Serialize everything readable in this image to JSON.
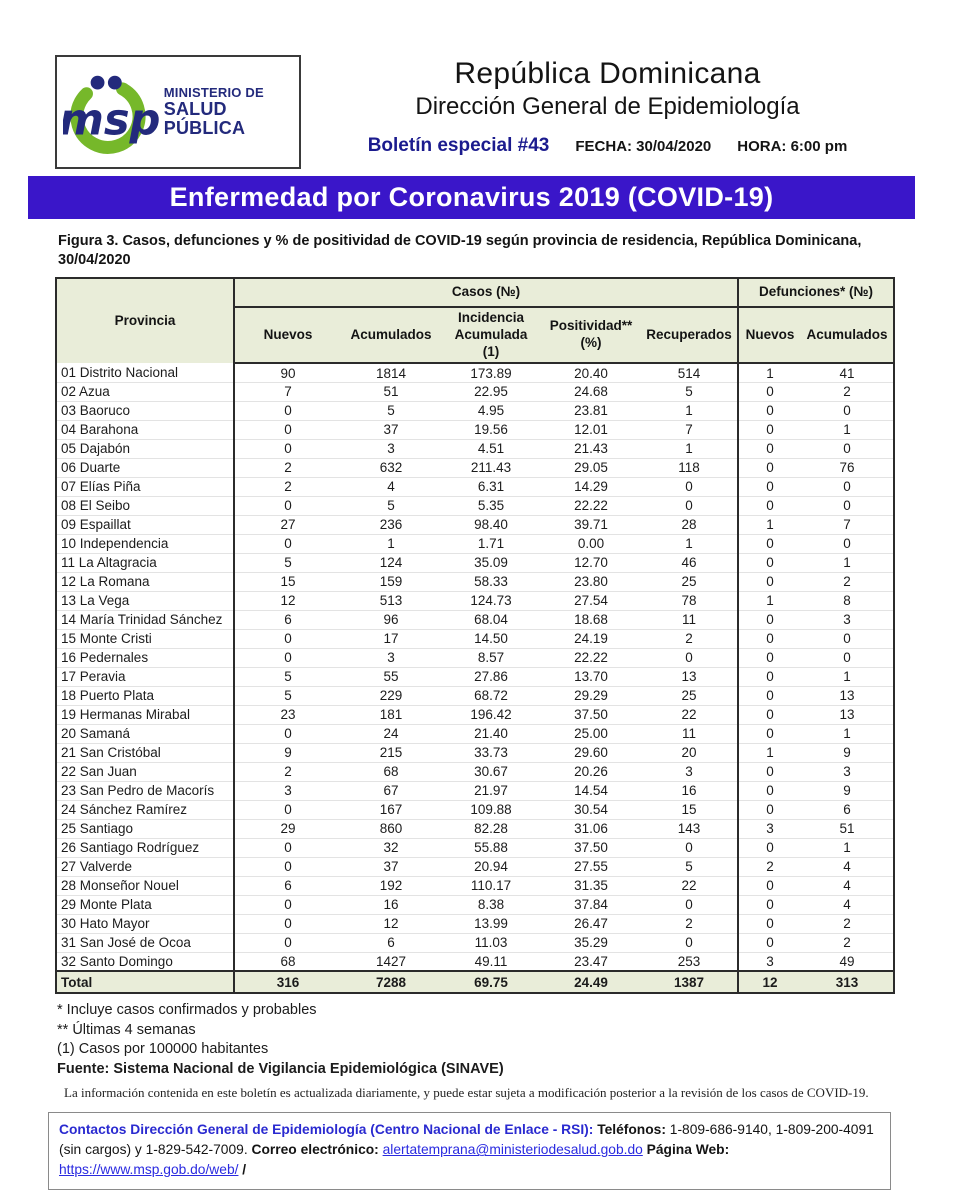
{
  "header": {
    "logo": {
      "line1": "MINISTERIO DE",
      "line2": "SALUD PÚBLICA",
      "monogram": "msp"
    },
    "title": "República Dominicana",
    "subtitle": "Dirección General de Epidemiología",
    "bulletin": "Boletín especial #43",
    "fecha": "FECHA: 30/04/2020",
    "hora": "HORA: 6:00 pm"
  },
  "banner": {
    "title": "Enfermedad por Coronavirus 2019 (COVID-19)",
    "bg_color": "#3a16c9"
  },
  "figure_caption": "Figura 3. Casos, defunciones y % de positividad de COVID-19 según provincia de residencia, República Dominicana, 30/04/2020",
  "table": {
    "header": {
      "provincia": "Provincia",
      "casos": "Casos (№)",
      "defunciones": "Defunciones* (№)"
    },
    "columns": [
      "Nuevos",
      "Acumulados",
      "Incidencia Acumulada (1)",
      "Positividad** (%)",
      "Recuperados",
      "Nuevos",
      "Acumulados"
    ],
    "rows": [
      [
        "01 Distrito Nacional",
        "90",
        "1814",
        "173.89",
        "20.40",
        "514",
        "1",
        "41"
      ],
      [
        "02 Azua",
        "7",
        "51",
        "22.95",
        "24.68",
        "5",
        "0",
        "2"
      ],
      [
        "03 Baoruco",
        "0",
        "5",
        "4.95",
        "23.81",
        "1",
        "0",
        "0"
      ],
      [
        "04 Barahona",
        "0",
        "37",
        "19.56",
        "12.01",
        "7",
        "0",
        "1"
      ],
      [
        "05 Dajabón",
        "0",
        "3",
        "4.51",
        "21.43",
        "1",
        "0",
        "0"
      ],
      [
        "06 Duarte",
        "2",
        "632",
        "211.43",
        "29.05",
        "118",
        "0",
        "76"
      ],
      [
        "07 Elías Piña",
        "2",
        "4",
        "6.31",
        "14.29",
        "0",
        "0",
        "0"
      ],
      [
        "08 El Seibo",
        "0",
        "5",
        "5.35",
        "22.22",
        "0",
        "0",
        "0"
      ],
      [
        "09 Espaillat",
        "27",
        "236",
        "98.40",
        "39.71",
        "28",
        "1",
        "7"
      ],
      [
        "10 Independencia",
        "0",
        "1",
        "1.71",
        "0.00",
        "1",
        "0",
        "0"
      ],
      [
        "11 La Altagracia",
        "5",
        "124",
        "35.09",
        "12.70",
        "46",
        "0",
        "1"
      ],
      [
        "12 La Romana",
        "15",
        "159",
        "58.33",
        "23.80",
        "25",
        "0",
        "2"
      ],
      [
        "13 La Vega",
        "12",
        "513",
        "124.73",
        "27.54",
        "78",
        "1",
        "8"
      ],
      [
        "14 María Trinidad Sánchez",
        "6",
        "96",
        "68.04",
        "18.68",
        "11",
        "0",
        "3"
      ],
      [
        "15 Monte Cristi",
        "0",
        "17",
        "14.50",
        "24.19",
        "2",
        "0",
        "0"
      ],
      [
        "16 Pedernales",
        "0",
        "3",
        "8.57",
        "22.22",
        "0",
        "0",
        "0"
      ],
      [
        "17 Peravia",
        "5",
        "55",
        "27.86",
        "13.70",
        "13",
        "0",
        "1"
      ],
      [
        "18 Puerto Plata",
        "5",
        "229",
        "68.72",
        "29.29",
        "25",
        "0",
        "13"
      ],
      [
        "19 Hermanas Mirabal",
        "23",
        "181",
        "196.42",
        "37.50",
        "22",
        "0",
        "13"
      ],
      [
        "20 Samaná",
        "0",
        "24",
        "21.40",
        "25.00",
        "11",
        "0",
        "1"
      ],
      [
        "21 San Cristóbal",
        "9",
        "215",
        "33.73",
        "29.60",
        "20",
        "1",
        "9"
      ],
      [
        "22 San Juan",
        "2",
        "68",
        "30.67",
        "20.26",
        "3",
        "0",
        "3"
      ],
      [
        "23 San Pedro de Macorís",
        "3",
        "67",
        "21.97",
        "14.54",
        "16",
        "0",
        "9"
      ],
      [
        "24 Sánchez Ramírez",
        "0",
        "167",
        "109.88",
        "30.54",
        "15",
        "0",
        "6"
      ],
      [
        "25 Santiago",
        "29",
        "860",
        "82.28",
        "31.06",
        "143",
        "3",
        "51"
      ],
      [
        "26 Santiago Rodríguez",
        "0",
        "32",
        "55.88",
        "37.50",
        "0",
        "0",
        "1"
      ],
      [
        "27 Valverde",
        "0",
        "37",
        "20.94",
        "27.55",
        "5",
        "2",
        "4"
      ],
      [
        "28 Monseñor Nouel",
        "6",
        "192",
        "110.17",
        "31.35",
        "22",
        "0",
        "4"
      ],
      [
        "29 Monte Plata",
        "0",
        "16",
        "8.38",
        "37.84",
        "0",
        "0",
        "4"
      ],
      [
        "30 Hato Mayor",
        "0",
        "12",
        "13.99",
        "26.47",
        "2",
        "0",
        "2"
      ],
      [
        "31 San José de Ocoa",
        "0",
        "6",
        "11.03",
        "35.29",
        "0",
        "0",
        "2"
      ],
      [
        "32 Santo Domingo",
        "68",
        "1427",
        "49.11",
        "23.47",
        "253",
        "3",
        "49"
      ]
    ],
    "total": [
      "Total",
      "316",
      "7288",
      "69.75",
      "24.49",
      "1387",
      "12",
      "313"
    ]
  },
  "footnotes": [
    {
      "text": "* Incluye casos confirmados y probables",
      "bold": false
    },
    {
      "text": "** Últimas 4 semanas",
      "bold": false
    },
    {
      "text": "(1) Casos por 100000 habitantes",
      "bold": false
    },
    {
      "text": "Fuente: Sistema Nacional de Vigilancia Epidemiológica (SINAVE)",
      "bold": true
    }
  ],
  "disclaimer": "La información contenida en este boletín es actualizada diariamente, y puede estar sujeta a modificación posterior a la revisión de los casos de COVID-19.",
  "contact": {
    "title": "Contactos Dirección General de Epidemiología (Centro Nacional de Enlace - RSI):",
    "phones_label": "Teléfonos:",
    "phones": "1-809-686-9140, 1-809-200-4091 (sin cargos) y 1-829-542-7009.",
    "email_label": "Correo electrónico:",
    "email": "alertatemprana@ministeriodesalud.gob.do",
    "web_label": "Página Web:",
    "web": "https://www.msp.gob.do/web/",
    "suffix": "/"
  },
  "colors": {
    "banner_blue": "#3a16c9",
    "navy_text": "#1b1b8e",
    "table_header_green": "#e9edd9",
    "logo_green": "#76b82a",
    "logo_navy": "#232a7c",
    "link_blue": "#2a2ae0"
  }
}
